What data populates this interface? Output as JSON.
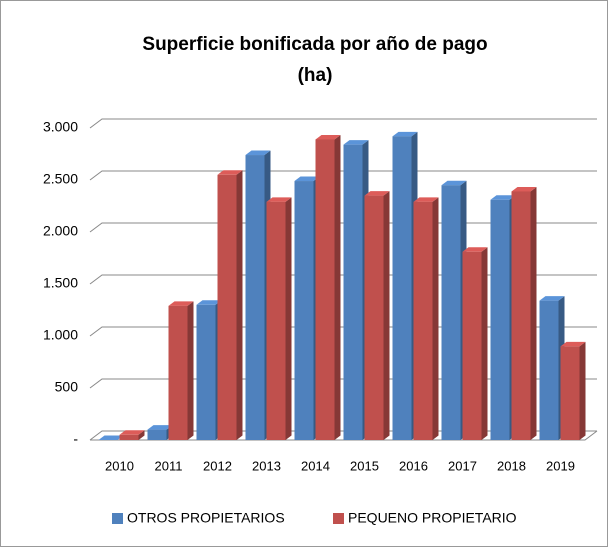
{
  "chart_data": {
    "type": "bar3d",
    "title": "Superficie bonificada por año de pago",
    "subtitle": "(ha)",
    "categories": [
      "2010",
      "2011",
      "2012",
      "2013",
      "2014",
      "2015",
      "2016",
      "2017",
      "2018",
      "2019"
    ],
    "series": [
      {
        "name": "OTROS PROPIETARIOS",
        "color": "#4f81bd",
        "values": [
          0,
          100,
          1300,
          2740,
          2490,
          2840,
          2920,
          2450,
          2310,
          1340
        ]
      },
      {
        "name": "PEQUENO PROPIETARIO",
        "color": "#c0504d",
        "values": [
          50,
          1290,
          2550,
          2290,
          2890,
          2350,
          2290,
          1810,
          2390,
          900
        ]
      }
    ],
    "ylim": [
      0,
      3000
    ],
    "yticks": [
      {
        "value": 0,
        "label": "-"
      },
      500,
      {
        "value": 1000,
        "label": "1.000"
      },
      {
        "value": 1500,
        "label": "1.500"
      },
      {
        "value": 2000,
        "label": "2.000"
      },
      {
        "value": 2500,
        "label": "2.500"
      },
      {
        "value": 3000,
        "label": "3.000"
      }
    ],
    "grid": true,
    "legend": "bottom"
  }
}
